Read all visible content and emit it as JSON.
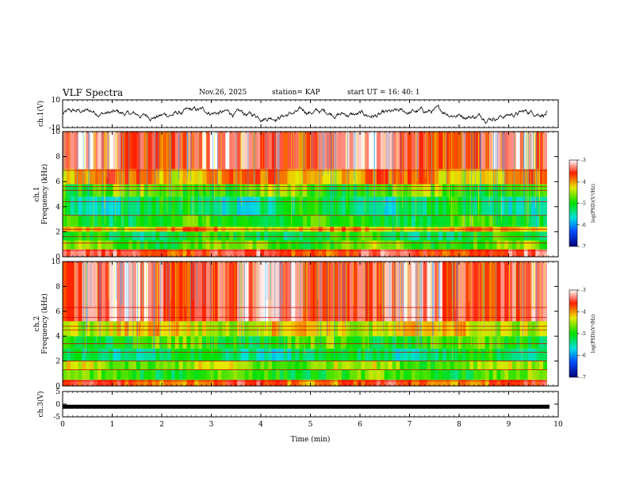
{
  "header": {
    "title": "VLF Spectra",
    "date": "Nov.26, 2025",
    "station": "station= KAP",
    "start_time": "start  UT =   16: 40: 1"
  },
  "chart_data": [
    {
      "type": "line",
      "panel": "ch1-waveform",
      "ylabel": "ch.1(V)",
      "ylim": [
        -10,
        10
      ],
      "yticks": [
        "10",
        "-10"
      ],
      "xlim": [
        0,
        10
      ],
      "description_series": "noisy waveform oscillating roughly between -6 and 6 V"
    },
    {
      "type": "heatmap",
      "panel": "ch1-spectrogram",
      "ylabel": "ch.1\nFrequency (kHz)",
      "ylim": [
        0,
        10
      ],
      "yticks": [
        "0",
        "2",
        "4",
        "6",
        "8",
        "10"
      ],
      "xlim": [
        0,
        9.8
      ],
      "colorbar": {
        "label": "log(PSD)(V²/Hz)",
        "range": [
          -7,
          -3
        ],
        "ticks": [
          "-3",
          "-4",
          "-5",
          "-6",
          "-7"
        ]
      },
      "bands": [
        {
          "from": 0.0,
          "to": 0.6,
          "level": -3.6
        },
        {
          "from": 0.6,
          "to": 1.3,
          "level": -4.8
        },
        {
          "from": 1.3,
          "to": 2.0,
          "level": -5.1
        },
        {
          "from": 2.0,
          "to": 2.4,
          "level": -4.2
        },
        {
          "from": 2.4,
          "to": 3.3,
          "level": -5.0
        },
        {
          "from": 3.3,
          "to": 4.8,
          "level": -5.3
        },
        {
          "from": 4.8,
          "to": 5.8,
          "level": -4.8
        },
        {
          "from": 5.8,
          "to": 7.0,
          "level": -4.0
        },
        {
          "from": 7.0,
          "to": 10.0,
          "level": -3.4
        }
      ],
      "lines_khz": [
        0.5,
        1.1,
        1.6,
        2.2,
        3.3,
        4.4,
        5.3,
        5.6,
        6.9
      ]
    },
    {
      "type": "heatmap",
      "panel": "ch2-spectrogram",
      "ylabel": "ch.2\nFrequency (kHz)",
      "ylim": [
        0,
        10
      ],
      "yticks": [
        "0",
        "2",
        "4",
        "6",
        "8",
        "10"
      ],
      "xlim": [
        0,
        9.8
      ],
      "colorbar": {
        "label": "log(PSD)(V²/Hz)",
        "range": [
          -7,
          -3
        ],
        "ticks": [
          "-3",
          "-4",
          "-5",
          "-6",
          "-7"
        ]
      },
      "bands": [
        {
          "from": 0.0,
          "to": 0.5,
          "level": -3.8
        },
        {
          "from": 0.5,
          "to": 1.3,
          "level": -4.9
        },
        {
          "from": 1.3,
          "to": 2.0,
          "level": -4.6
        },
        {
          "from": 2.0,
          "to": 3.0,
          "level": -5.3
        },
        {
          "from": 3.0,
          "to": 4.0,
          "level": -4.9
        },
        {
          "from": 4.0,
          "to": 5.2,
          "level": -4.3
        },
        {
          "from": 5.2,
          "to": 10.0,
          "level": -3.4
        }
      ],
      "lines_khz": [
        0.4,
        1.3,
        2.0,
        2.7,
        3.4,
        4.5,
        4.8,
        5.5,
        6.3
      ]
    },
    {
      "type": "line",
      "panel": "ch3-waveform",
      "ylabel": "ch.3(V)",
      "ylim": [
        -5,
        5
      ],
      "yticks": [
        "5",
        "0",
        "-5"
      ],
      "xlim": [
        0,
        10
      ],
      "series": [
        {
          "name": "ch.3",
          "level": -1.0
        }
      ]
    }
  ],
  "x_axis": {
    "label": "Time  (min)",
    "ticks": [
      "0",
      "1",
      "2",
      "3",
      "4",
      "5",
      "6",
      "7",
      "8",
      "9",
      "10"
    ],
    "range": [
      0,
      10
    ]
  }
}
